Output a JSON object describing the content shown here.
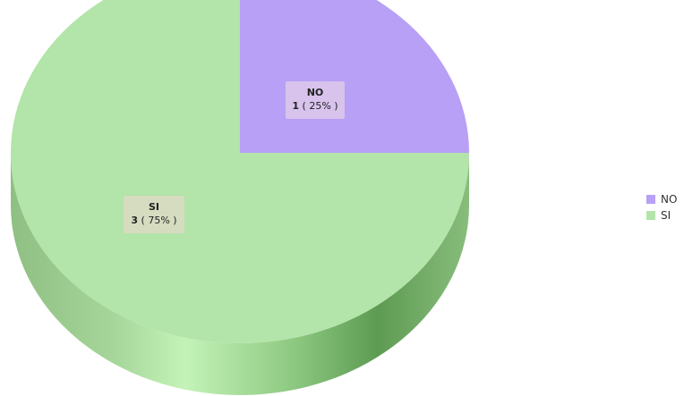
{
  "chart_data": {
    "type": "pie",
    "style": "3d",
    "slices": [
      {
        "name": "NO",
        "value": 1,
        "percent_label": "( 25% )",
        "color": "#b7a0f5"
      },
      {
        "name": "SI",
        "value": 3,
        "percent_label": "( 75% )",
        "color": "#b3e4a9"
      }
    ],
    "legend": {
      "position": "right",
      "items": [
        {
          "label": "NO",
          "color": "#b7a0f5"
        },
        {
          "label": "SI",
          "color": "#b3e4a9"
        }
      ]
    },
    "colors": {
      "side_dark": "#5e9b52",
      "side_light": "#c4f3b8",
      "label_box_no": "#d8c3ec",
      "label_box_si": "#d6dcc0"
    }
  }
}
